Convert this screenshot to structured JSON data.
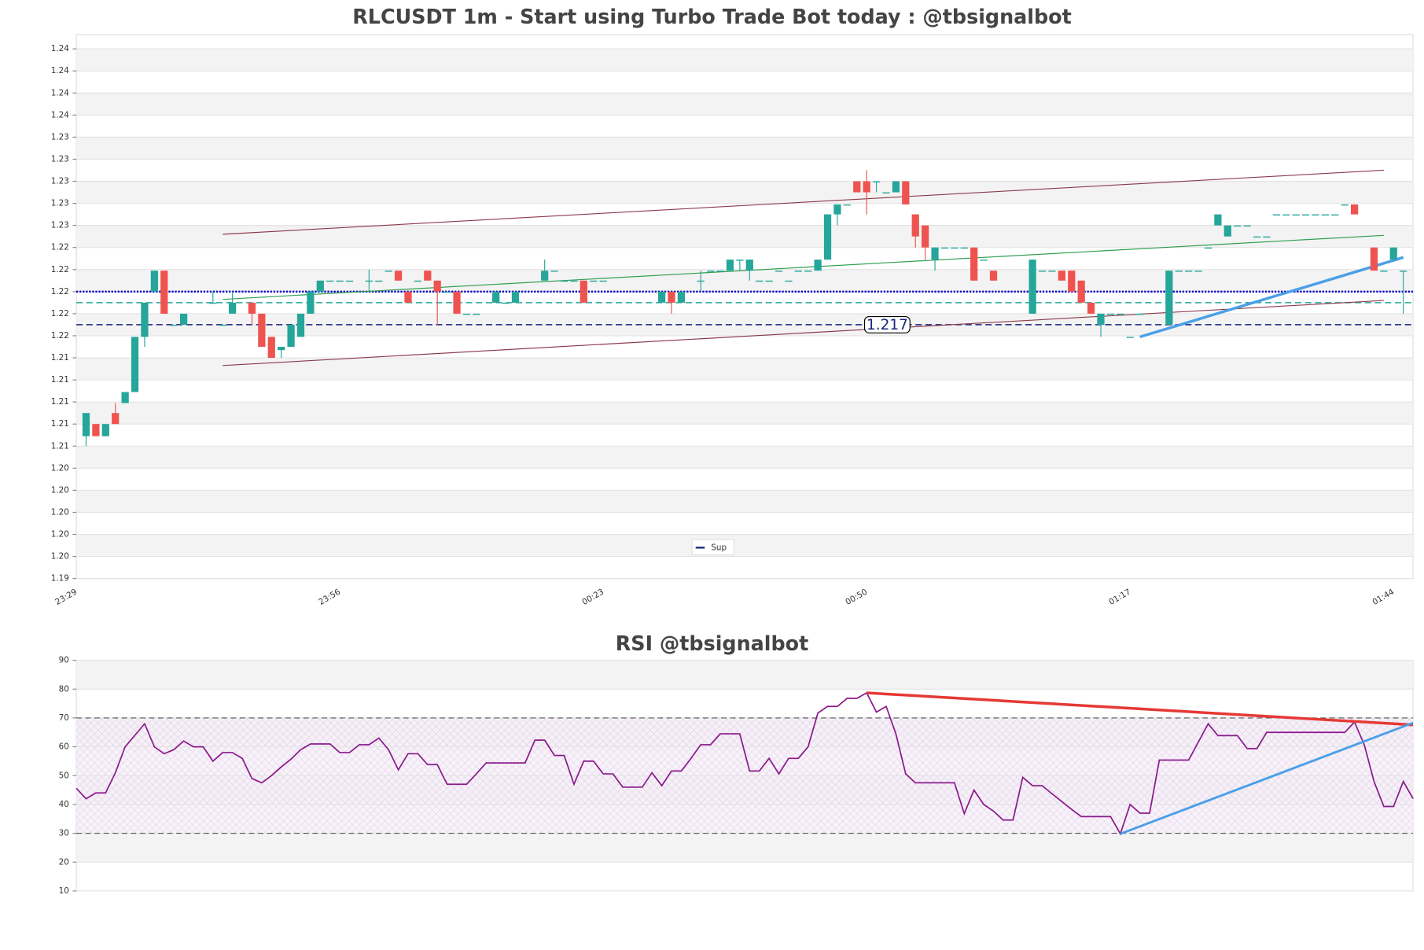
{
  "chart_data": [
    {
      "type": "candlestick",
      "title": "RLCUSDT 1m - Start using Turbo Trade Bot today : @tbsignalbot",
      "categories": [
        "23:29",
        null,
        null,
        null,
        null,
        null,
        null,
        null,
        null,
        null,
        null,
        null,
        null,
        null,
        null,
        null,
        null,
        null,
        null,
        null,
        null,
        null,
        null,
        null,
        null,
        null,
        null,
        "23:56",
        null,
        null,
        null,
        null,
        null,
        null,
        null,
        null,
        null,
        null,
        null,
        null,
        null,
        null,
        null,
        null,
        null,
        null,
        null,
        null,
        null,
        null,
        null,
        null,
        null,
        null,
        "00:23",
        null,
        null,
        null,
        null,
        null,
        null,
        null,
        null,
        null,
        null,
        null,
        null,
        null,
        null,
        null,
        null,
        null,
        null,
        null,
        null,
        null,
        null,
        null,
        null,
        null,
        null,
        "00:50",
        null,
        null,
        null,
        null,
        null,
        null,
        null,
        null,
        null,
        null,
        null,
        null,
        null,
        null,
        null,
        null,
        null,
        null,
        null,
        null,
        null,
        null,
        null,
        null,
        null,
        null,
        "01:17",
        null,
        null,
        null,
        null,
        null,
        null,
        null,
        null,
        null,
        null,
        null,
        null,
        null,
        null,
        null,
        null,
        null,
        null,
        null,
        null,
        null,
        null,
        null,
        null,
        null,
        null,
        "01:44",
        null
      ],
      "open": [
        null,
        1.2069,
        1.208,
        1.2069,
        1.209,
        1.2099,
        1.2109,
        1.2159,
        1.22,
        1.2219,
        1.217,
        1.217,
        null,
        null,
        1.219,
        1.217,
        1.218,
        null,
        1.219,
        1.218,
        1.2159,
        1.2147,
        1.215,
        1.2159,
        1.218,
        1.22,
        1.221,
        1.221,
        1.221,
        null,
        1.221,
        1.221,
        1.2219,
        1.2219,
        1.22,
        1.221,
        1.2219,
        1.221,
        1.22,
        1.22,
        1.218,
        1.218,
        null,
        1.219,
        1.219,
        1.219,
        null,
        null,
        1.221,
        1.2219,
        1.221,
        1.221,
        1.221,
        1.221,
        1.221,
        null,
        null,
        null,
        null,
        null,
        1.219,
        1.22,
        1.219,
        null,
        1.221,
        1.2219,
        1.2219,
        1.2219,
        1.2229,
        1.2219,
        1.221,
        1.221,
        1.2219,
        1.221,
        1.2219,
        1.2219,
        1.2219,
        1.2229,
        1.227,
        1.2279,
        1.23,
        1.23,
        1.23,
        1.229,
        1.229,
        1.23,
        1.227,
        1.226,
        1.2229,
        1.224,
        1.224,
        1.224,
        1.224,
        1.2229,
        1.2219,
        null,
        null,
        null,
        1.218,
        1.2219,
        1.2219,
        1.2219,
        1.2219,
        1.221,
        1.219,
        1.217,
        1.218,
        1.218,
        1.2159,
        1.218,
        null,
        null,
        1.217,
        1.2219,
        1.2219,
        1.2219,
        1.224,
        1.226,
        1.225,
        1.226,
        1.226,
        1.225,
        1.225,
        1.227,
        1.227,
        1.227,
        1.227,
        1.227,
        1.227,
        1.227,
        1.2279,
        1.2279,
        null,
        1.224,
        1.2219,
        1.2229,
        1.2219
      ],
      "high": [
        null,
        1.209,
        1.208,
        1.208,
        1.2099,
        1.2109,
        1.2159,
        1.219,
        1.2219,
        1.2219,
        1.217,
        1.218,
        null,
        null,
        1.22,
        1.217,
        1.22,
        null,
        1.219,
        1.218,
        1.2159,
        1.215,
        1.217,
        1.218,
        1.22,
        1.221,
        1.221,
        1.221,
        1.221,
        null,
        1.222,
        1.221,
        1.2219,
        1.2219,
        1.22,
        1.221,
        1.2219,
        1.221,
        1.22,
        1.22,
        1.218,
        1.218,
        null,
        1.22,
        1.219,
        1.22,
        null,
        null,
        1.2229,
        1.2219,
        1.221,
        1.221,
        1.221,
        1.221,
        1.221,
        null,
        null,
        null,
        null,
        null,
        1.22,
        1.22,
        1.22,
        null,
        1.2219,
        1.2219,
        1.2219,
        1.2229,
        1.2229,
        1.2229,
        1.221,
        1.221,
        1.2219,
        1.221,
        1.2219,
        1.2219,
        1.2229,
        1.227,
        1.2279,
        1.2279,
        1.23,
        1.231,
        1.23,
        1.229,
        1.23,
        1.23,
        1.227,
        1.226,
        1.224,
        1.224,
        1.224,
        1.224,
        1.224,
        1.2229,
        1.2219,
        null,
        null,
        null,
        1.2229,
        1.2219,
        1.2219,
        1.2219,
        1.2219,
        1.221,
        1.219,
        1.218,
        1.218,
        1.218,
        1.2159,
        1.218,
        null,
        null,
        1.2219,
        1.2219,
        1.2219,
        1.2219,
        1.224,
        1.227,
        1.226,
        1.226,
        1.226,
        1.225,
        1.225,
        1.227,
        1.227,
        1.227,
        1.227,
        1.227,
        1.227,
        1.227,
        1.2279,
        1.2279,
        null,
        1.224,
        1.2219,
        1.224,
        1.2219
      ],
      "low": [
        null,
        1.206,
        1.2069,
        1.2069,
        1.208,
        1.2099,
        1.2109,
        1.215,
        1.22,
        1.218,
        1.217,
        1.217,
        null,
        null,
        1.219,
        1.217,
        1.218,
        null,
        1.217,
        1.215,
        1.214,
        1.214,
        1.215,
        1.2159,
        1.218,
        1.22,
        1.221,
        1.221,
        1.221,
        null,
        1.22,
        1.221,
        1.2219,
        1.221,
        1.219,
        1.221,
        1.221,
        1.217,
        1.22,
        1.218,
        1.218,
        1.218,
        null,
        1.219,
        1.219,
        1.219,
        null,
        null,
        1.221,
        1.2219,
        1.221,
        1.221,
        1.219,
        1.221,
        1.221,
        null,
        null,
        null,
        null,
        null,
        1.219,
        1.218,
        1.219,
        null,
        1.22,
        1.2219,
        1.2219,
        1.2219,
        1.2219,
        1.221,
        1.221,
        1.221,
        1.2219,
        1.221,
        1.2219,
        1.2219,
        1.2219,
        1.2229,
        1.226,
        1.2279,
        1.229,
        1.227,
        1.229,
        1.229,
        1.229,
        1.2279,
        1.224,
        1.2229,
        1.2219,
        1.224,
        1.224,
        1.224,
        1.221,
        1.2229,
        1.221,
        null,
        null,
        null,
        1.218,
        1.2219,
        1.2219,
        1.221,
        1.22,
        1.219,
        1.218,
        1.2159,
        1.218,
        1.218,
        1.2159,
        1.218,
        null,
        null,
        1.217,
        1.2219,
        1.2219,
        1.2219,
        1.224,
        1.226,
        1.225,
        1.226,
        1.226,
        1.225,
        1.225,
        1.227,
        1.227,
        1.227,
        1.227,
        1.227,
        1.227,
        1.227,
        1.2279,
        1.227,
        null,
        1.2219,
        1.2219,
        1.2229,
        1.218
      ],
      "close": [
        null,
        1.209,
        1.2069,
        1.208,
        1.208,
        1.2109,
        1.2159,
        1.219,
        1.2219,
        1.218,
        1.217,
        1.218,
        null,
        null,
        1.219,
        1.217,
        1.219,
        null,
        1.218,
        1.215,
        1.214,
        1.215,
        1.217,
        1.218,
        1.22,
        1.221,
        1.221,
        1.221,
        1.221,
        null,
        1.221,
        1.221,
        1.2219,
        1.221,
        1.219,
        1.221,
        1.221,
        1.22,
        1.22,
        1.218,
        1.218,
        1.218,
        null,
        1.22,
        1.219,
        1.22,
        null,
        null,
        1.2219,
        1.2219,
        1.221,
        1.221,
        1.219,
        1.221,
        1.221,
        null,
        null,
        null,
        null,
        null,
        1.22,
        1.219,
        1.22,
        null,
        1.221,
        1.2219,
        1.2219,
        1.2229,
        1.2229,
        1.2229,
        1.221,
        1.221,
        1.2219,
        1.221,
        1.2219,
        1.2219,
        1.2229,
        1.227,
        1.2279,
        1.2279,
        1.229,
        1.229,
        1.23,
        1.229,
        1.23,
        1.2279,
        1.225,
        1.224,
        1.224,
        1.224,
        1.224,
        1.224,
        1.221,
        1.2229,
        1.221,
        null,
        null,
        null,
        1.2229,
        1.2219,
        1.2219,
        1.221,
        1.22,
        1.219,
        1.218,
        1.218,
        1.218,
        1.218,
        1.2159,
        1.218,
        null,
        null,
        1.2219,
        1.2219,
        1.2219,
        1.2219,
        1.224,
        1.227,
        1.226,
        1.226,
        1.226,
        1.225,
        1.225,
        1.227,
        1.227,
        1.227,
        1.227,
        1.227,
        1.227,
        1.227,
        1.2279,
        1.227,
        null,
        1.2219,
        1.2219,
        1.224,
        1.2219
      ],
      "up_color": "#26a69a",
      "down_color": "#ef5350",
      "ylim": [
        1.194,
        1.2433
      ],
      "yticks": [
        {
          "value": 1.194,
          "label": "1.19"
        },
        {
          "value": 1.196,
          "label": "1.20"
        },
        {
          "value": 1.198,
          "label": "1.20"
        },
        {
          "value": 1.2,
          "label": "1.20"
        },
        {
          "value": 1.202,
          "label": "1.20"
        },
        {
          "value": 1.204,
          "label": "1.20"
        },
        {
          "value": 1.206,
          "label": "1.21"
        },
        {
          "value": 1.208,
          "label": "1.21"
        },
        {
          "value": 1.21,
          "label": "1.21"
        },
        {
          "value": 1.212,
          "label": "1.21"
        },
        {
          "value": 1.214,
          "label": "1.21"
        },
        {
          "value": 1.216,
          "label": "1.22"
        },
        {
          "value": 1.218,
          "label": "1.22"
        },
        {
          "value": 1.22,
          "label": "1.22"
        },
        {
          "value": 1.222,
          "label": "1.22"
        },
        {
          "value": 1.224,
          "label": "1.22"
        },
        {
          "value": 1.226,
          "label": "1.23"
        },
        {
          "value": 1.228,
          "label": "1.23"
        },
        {
          "value": 1.23,
          "label": "1.23"
        },
        {
          "value": 1.232,
          "label": "1.23"
        },
        {
          "value": 1.234,
          "label": "1.23"
        },
        {
          "value": 1.236,
          "label": "1.24"
        },
        {
          "value": 1.238,
          "label": "1.24"
        },
        {
          "value": 1.24,
          "label": "1.24"
        },
        {
          "value": 1.242,
          "label": "1.24"
        }
      ],
      "grid": true,
      "levels": [
        {
          "value": 1.22,
          "color": "#0000cc",
          "style": "dotted"
        },
        {
          "value": 1.219,
          "color": "#26a69a",
          "style": "dashed"
        },
        {
          "value": 1.217,
          "label": "1.217",
          "name": "Sup",
          "color": "#1a237e",
          "style": "dashed"
        }
      ],
      "trendlines": [
        {
          "x": [
            15,
            134
          ],
          "y": [
            1.2252,
            1.231
          ],
          "color": "#8b3a4a",
          "width": 1
        },
        {
          "x": [
            15,
            134
          ],
          "y": [
            1.2133,
            1.2192
          ],
          "color": "#8b3a4a",
          "width": 1
        },
        {
          "x": [
            15,
            134
          ],
          "y": [
            1.2193,
            1.2251
          ],
          "color": "#2e9e4e",
          "width": 1
        },
        {
          "x": [
            109,
            136
          ],
          "y": [
            1.2159,
            1.2231
          ],
          "color": "#4a9fe8",
          "width": 3
        }
      ],
      "legend": "lower center"
    },
    {
      "type": "line",
      "title": "RSI @tbsignalbot",
      "color": "#8b1a8b",
      "values": [
        45.6,
        42,
        44,
        44,
        51,
        60,
        64,
        68,
        60,
        57.6,
        59,
        62,
        60,
        60,
        55,
        58,
        58,
        56,
        49,
        47.5,
        50,
        53,
        55.7,
        59,
        61,
        61,
        61,
        58,
        58,
        60.7,
        60.7,
        63,
        59,
        52,
        57.6,
        57.6,
        53.8,
        53.8,
        47,
        47,
        47,
        50.6,
        54.4,
        54.4,
        54.4,
        54.4,
        54.4,
        62.3,
        62.3,
        57,
        57,
        47,
        55,
        55,
        50.6,
        50.6,
        46,
        46,
        46,
        51,
        46.5,
        51.6,
        51.6,
        56,
        60.7,
        60.7,
        64.5,
        64.5,
        64.5,
        51.6,
        51.6,
        56,
        50.6,
        56,
        56,
        60,
        71.7,
        74,
        74,
        76.8,
        76.8,
        78.7,
        72,
        74,
        64.5,
        50.6,
        47.5,
        47.5,
        47.5,
        47.5,
        47.5,
        36.8,
        45,
        40,
        37.7,
        34.6,
        34.6,
        49.4,
        46.5,
        46.5,
        43.7,
        41,
        38.3,
        35.8,
        35.8,
        35.8,
        35.8,
        29.8,
        40,
        37,
        37,
        55.4,
        55.4,
        55.4,
        55.4,
        61.7,
        68,
        63.9,
        63.9,
        63.9,
        59.4,
        59.4,
        65,
        65,
        65,
        65,
        65,
        65,
        65,
        65,
        65,
        68.6,
        60.7,
        48,
        39.3,
        39.3,
        48,
        42
      ],
      "ylim": [
        10,
        90
      ],
      "yticks": [
        10,
        20,
        30,
        40,
        50,
        60,
        70,
        80,
        90
      ],
      "grid": true,
      "hlines": [
        30,
        70
      ],
      "trendlines": [
        {
          "x": [
            81,
            137
          ],
          "y": [
            78.7,
            67.6
          ],
          "color": "#e53935",
          "width": 3
        },
        {
          "x": [
            107,
            137
          ],
          "y": [
            29.8,
            68.3
          ],
          "color": "#4a9fe8",
          "width": 2.5
        }
      ]
    }
  ]
}
